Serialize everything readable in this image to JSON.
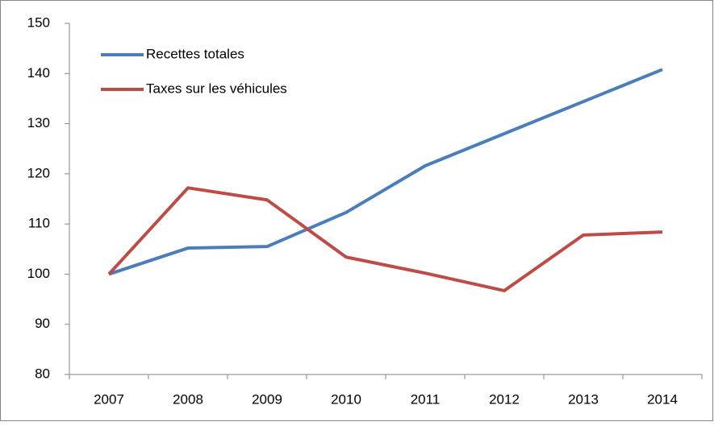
{
  "chart_data": {
    "type": "line",
    "categories": [
      "2007",
      "2008",
      "2009",
      "2010",
      "2011",
      "2012",
      "2013",
      "2014"
    ],
    "series": [
      {
        "name": "Recettes totales",
        "color": "#4a7ebb",
        "values": [
          100,
          105.2,
          105.5,
          112.3,
          121.6,
          128,
          134.4,
          140.8
        ]
      },
      {
        "name": "Taxes sur les véhicules",
        "color": "#be4b48",
        "values": [
          100,
          117.2,
          114.8,
          103.4,
          100.2,
          96.7,
          107.8,
          108.4
        ]
      }
    ],
    "ylim": [
      80,
      150
    ],
    "yticks": [
      80,
      90,
      100,
      110,
      120,
      130,
      140,
      150
    ],
    "grid": false,
    "legend": "upper left"
  }
}
